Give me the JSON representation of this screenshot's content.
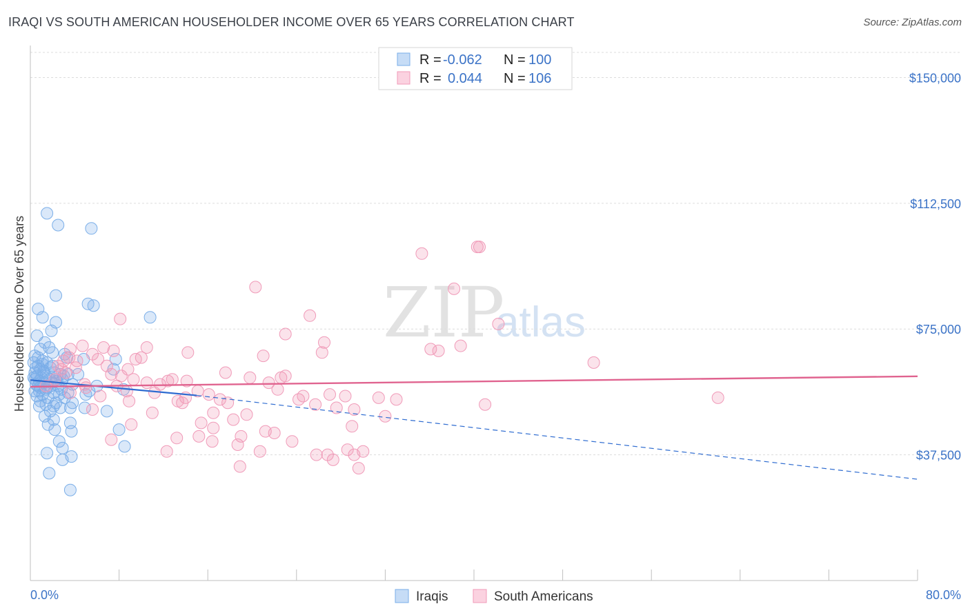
{
  "header": {
    "title": "IRAQI VS SOUTH AMERICAN HOUSEHOLDER INCOME OVER 65 YEARS CORRELATION CHART",
    "source": "Source: ZipAtlas.com"
  },
  "legend": {
    "rows": [
      {
        "r_label": "R =",
        "r_value": "-0.062",
        "n_label": "N =",
        "n_value": "100",
        "color": "#7aaee8"
      },
      {
        "r_label": "R =",
        "r_value": "0.044",
        "n_label": "N =",
        "n_value": "106",
        "color": "#f09ab8"
      }
    ]
  },
  "bottom_legend": [
    "Iraqis",
    "South Americans"
  ],
  "watermark": {
    "zip": "ZIP",
    "atlas": "atlas"
  },
  "chart_data": {
    "type": "scatter",
    "xlabel": "",
    "ylabel": "Householder Income Over 65 years",
    "xlim": [
      0,
      80
    ],
    "ylim": [
      0,
      157500
    ],
    "x_tick_labels": [
      "0.0%",
      "80.0%"
    ],
    "y_ticks": [
      37500,
      75000,
      112500,
      150000
    ],
    "y_tick_labels": [
      "$37,500",
      "$75,000",
      "$112,500",
      "$150,000"
    ],
    "grid": true,
    "legend_position": "top-center",
    "colors": {
      "iraqis": "#7aaee8",
      "south_americans": "#f09ab8",
      "iraqis_line": "#2d6bd0",
      "south_americans_line": "#e0638f"
    },
    "series": [
      {
        "name": "Iraqis",
        "trend": {
          "x": [
            0,
            15
          ],
          "y": [
            59800,
            55200
          ],
          "dashed_to": [
            80,
            30200
          ]
        },
        "points": [
          [
            1.5,
            109500
          ],
          [
            2.5,
            106000
          ],
          [
            5.5,
            105000
          ],
          [
            0.7,
            81000
          ],
          [
            2.3,
            85000
          ],
          [
            1.1,
            78500
          ],
          [
            2.3,
            77000
          ],
          [
            5.2,
            82500
          ],
          [
            5.7,
            82000
          ],
          [
            10.8,
            78500
          ],
          [
            0.6,
            73000
          ],
          [
            1.9,
            74500
          ],
          [
            1.3,
            71000
          ],
          [
            1.7,
            69500
          ],
          [
            0.9,
            69000
          ],
          [
            2.0,
            68000
          ],
          [
            0.4,
            67000
          ],
          [
            3.1,
            67500
          ],
          [
            0.7,
            66500
          ],
          [
            1.1,
            65500
          ],
          [
            0.3,
            65000
          ],
          [
            1.5,
            65000
          ],
          [
            4.8,
            66000
          ],
          [
            7.7,
            66000
          ],
          [
            0.7,
            64000
          ],
          [
            1.8,
            63500
          ],
          [
            0.9,
            63000
          ],
          [
            1.2,
            62500
          ],
          [
            0.4,
            62000
          ],
          [
            2.2,
            62000
          ],
          [
            2.7,
            61500
          ],
          [
            3.4,
            61500
          ],
          [
            0.6,
            61000
          ],
          [
            1.4,
            61000
          ],
          [
            0.3,
            60500
          ],
          [
            1.7,
            60000
          ],
          [
            2.3,
            60000
          ],
          [
            2.9,
            60000
          ],
          [
            0.8,
            59500
          ],
          [
            1.2,
            59000
          ],
          [
            0.5,
            58500
          ],
          [
            1.8,
            58000
          ],
          [
            2.5,
            58000
          ],
          [
            3.8,
            58500
          ],
          [
            0.9,
            57500
          ],
          [
            1.4,
            57000
          ],
          [
            2.8,
            57000
          ],
          [
            6.0,
            58000
          ],
          [
            0.4,
            56500
          ],
          [
            2.1,
            56000
          ],
          [
            3.4,
            56000
          ],
          [
            8.4,
            57000
          ],
          [
            1.1,
            55500
          ],
          [
            0.6,
            55000
          ],
          [
            1.6,
            54500
          ],
          [
            3.1,
            54500
          ],
          [
            5.0,
            55500
          ],
          [
            0.9,
            53500
          ],
          [
            2.3,
            53000
          ],
          [
            3.8,
            53000
          ],
          [
            1.4,
            52500
          ],
          [
            0.8,
            52000
          ],
          [
            2.7,
            51500
          ],
          [
            3.6,
            51500
          ],
          [
            4.9,
            51500
          ],
          [
            1.8,
            50500
          ],
          [
            6.9,
            50500
          ],
          [
            1.3,
            49000
          ],
          [
            2.1,
            48000
          ],
          [
            3.6,
            47000
          ],
          [
            1.6,
            46500
          ],
          [
            2.2,
            45000
          ],
          [
            3.7,
            44500
          ],
          [
            8.0,
            45000
          ],
          [
            2.6,
            41500
          ],
          [
            2.9,
            39500
          ],
          [
            8.5,
            40000
          ],
          [
            1.5,
            38000
          ],
          [
            3.7,
            37000
          ],
          [
            2.9,
            36000
          ],
          [
            1.7,
            32000
          ],
          [
            3.6,
            27000
          ],
          [
            0.5,
            63500
          ],
          [
            1.0,
            60500
          ],
          [
            1.9,
            59000
          ],
          [
            2.6,
            55500
          ],
          [
            0.7,
            58000
          ],
          [
            1.2,
            62000
          ],
          [
            2.0,
            64000
          ],
          [
            0.4,
            60000
          ],
          [
            3.0,
            61000
          ],
          [
            1.5,
            57500
          ],
          [
            2.4,
            59500
          ],
          [
            0.8,
            56500
          ],
          [
            1.1,
            64500
          ],
          [
            7.5,
            63000
          ],
          [
            4.3,
            61500
          ],
          [
            5.3,
            56500
          ],
          [
            3.3,
            66500
          ],
          [
            2.1,
            52000
          ]
        ]
      },
      {
        "name": "South Americans",
        "trend": {
          "x": [
            0,
            80
          ],
          "y": [
            57800,
            60900
          ]
        },
        "points": [
          [
            40.3,
            99500
          ],
          [
            40.5,
            99500
          ],
          [
            35.3,
            97500
          ],
          [
            20.3,
            87500
          ],
          [
            38.2,
            87000
          ],
          [
            8.1,
            78000
          ],
          [
            25.2,
            79000
          ],
          [
            42.2,
            76500
          ],
          [
            23.0,
            73500
          ],
          [
            26.5,
            71000
          ],
          [
            38.8,
            70000
          ],
          [
            4.7,
            70000
          ],
          [
            6.6,
            69500
          ],
          [
            10.5,
            69500
          ],
          [
            3.6,
            69000
          ],
          [
            7.5,
            68500
          ],
          [
            14.2,
            68000
          ],
          [
            26.3,
            68000
          ],
          [
            36.1,
            69000
          ],
          [
            36.8,
            68500
          ],
          [
            5.6,
            67500
          ],
          [
            21.0,
            67000
          ],
          [
            3.5,
            66500
          ],
          [
            6.1,
            66000
          ],
          [
            9.5,
            66000
          ],
          [
            3.0,
            65500
          ],
          [
            4.2,
            65500
          ],
          [
            50.8,
            65000
          ],
          [
            2.5,
            64000
          ],
          [
            4.1,
            63500
          ],
          [
            8.8,
            63000
          ],
          [
            17.6,
            62000
          ],
          [
            7.3,
            61500
          ],
          [
            23.0,
            61000
          ],
          [
            22.6,
            60500
          ],
          [
            19.8,
            60500
          ],
          [
            9.3,
            60000
          ],
          [
            12.4,
            59500
          ],
          [
            14.1,
            59500
          ],
          [
            10.5,
            59000
          ],
          [
            11.7,
            58500
          ],
          [
            7.8,
            58000
          ],
          [
            5.0,
            57500
          ],
          [
            22.3,
            57000
          ],
          [
            8.7,
            56500
          ],
          [
            11.2,
            56000
          ],
          [
            3.6,
            56000
          ],
          [
            27.0,
            55500
          ],
          [
            16.1,
            55500
          ],
          [
            6.3,
            55000
          ],
          [
            28.4,
            55000
          ],
          [
            62.0,
            54500
          ],
          [
            14.0,
            54500
          ],
          [
            31.4,
            54500
          ],
          [
            17.1,
            54000
          ],
          [
            24.2,
            54000
          ],
          [
            8.9,
            53500
          ],
          [
            13.3,
            53500
          ],
          [
            13.7,
            53000
          ],
          [
            25.7,
            52500
          ],
          [
            41.0,
            52500
          ],
          [
            29.2,
            51000
          ],
          [
            5.6,
            51000
          ],
          [
            16.5,
            50000
          ],
          [
            11.0,
            50000
          ],
          [
            19.5,
            49500
          ],
          [
            32.0,
            49000
          ],
          [
            18.3,
            48000
          ],
          [
            15.4,
            47000
          ],
          [
            29.0,
            46000
          ],
          [
            9.1,
            46500
          ],
          [
            16.5,
            45500
          ],
          [
            21.2,
            44500
          ],
          [
            22.0,
            44000
          ],
          [
            15.2,
            43000
          ],
          [
            19.0,
            43000
          ],
          [
            13.2,
            42500
          ],
          [
            7.3,
            42000
          ],
          [
            16.4,
            41500
          ],
          [
            23.6,
            41500
          ],
          [
            18.7,
            40500
          ],
          [
            28.6,
            39000
          ],
          [
            30.0,
            38500
          ],
          [
            12.3,
            38500
          ],
          [
            20.7,
            38500
          ],
          [
            25.8,
            37500
          ],
          [
            26.8,
            37500
          ],
          [
            29.2,
            37500
          ],
          [
            27.3,
            36000
          ],
          [
            18.9,
            34000
          ],
          [
            29.6,
            33500
          ],
          [
            2.2,
            60000
          ],
          [
            3.2,
            62000
          ],
          [
            4.9,
            58500
          ],
          [
            6.9,
            64000
          ],
          [
            8.2,
            61000
          ],
          [
            10.0,
            66500
          ],
          [
            12.8,
            60000
          ],
          [
            2.8,
            63000
          ],
          [
            15.1,
            56500
          ],
          [
            17.8,
            53000
          ],
          [
            21.5,
            59000
          ],
          [
            24.6,
            55000
          ],
          [
            27.6,
            51500
          ],
          [
            33.0,
            54000
          ],
          [
            1.4,
            58000
          ]
        ]
      }
    ]
  }
}
